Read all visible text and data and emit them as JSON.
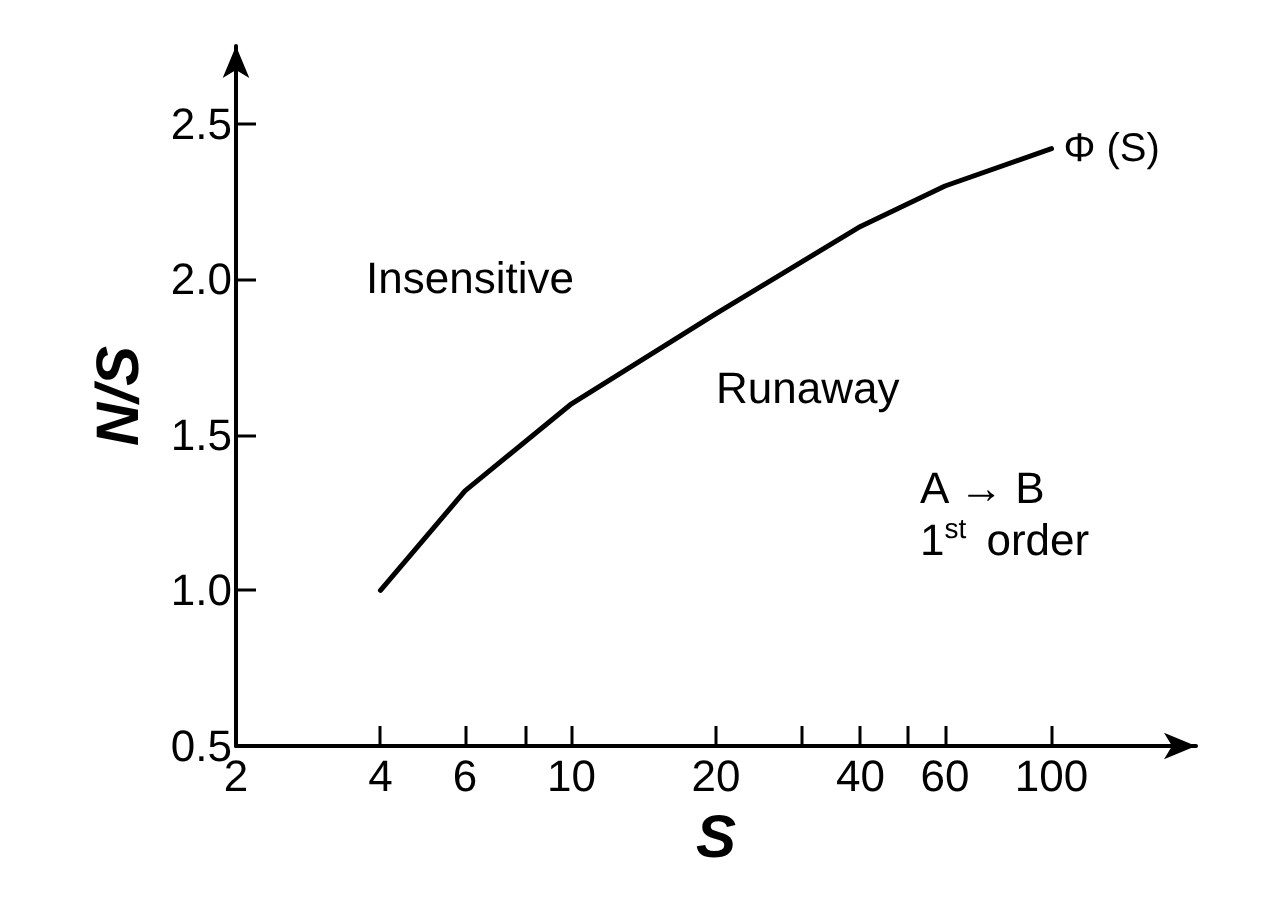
{
  "chart_data": {
    "type": "line",
    "xlabel": "S",
    "ylabel": "N/S",
    "x": [
      4,
      6,
      10,
      20,
      40,
      60,
      100
    ],
    "series": [
      {
        "name": "Φ (S)",
        "color": "#000000",
        "values": [
          1.0,
          1.32,
          1.6,
          1.89,
          2.17,
          2.3,
          2.42
        ]
      }
    ],
    "log": "x",
    "xlim": [
      2,
      200
    ],
    "xticks": [
      2,
      4,
      6,
      {
        "value": 8,
        "label": null
      },
      10,
      20,
      {
        "value": 30,
        "label": null
      },
      40,
      {
        "value": 50,
        "label": null
      },
      60,
      100
    ],
    "ylim": [
      0.5,
      2.75
    ],
    "yticks": [
      0.5,
      {
        "value": 1,
        "label": "1.0"
      },
      1.5,
      {
        "value": 2,
        "label": "2.0"
      },
      2.5
    ],
    "annotations": [
      "Insensitive",
      "Runaway",
      "A → B\n1$^{st}$ order"
    ],
    "grid": false,
    "legend": false,
    "marker": "none",
    "line_style": "solid"
  }
}
